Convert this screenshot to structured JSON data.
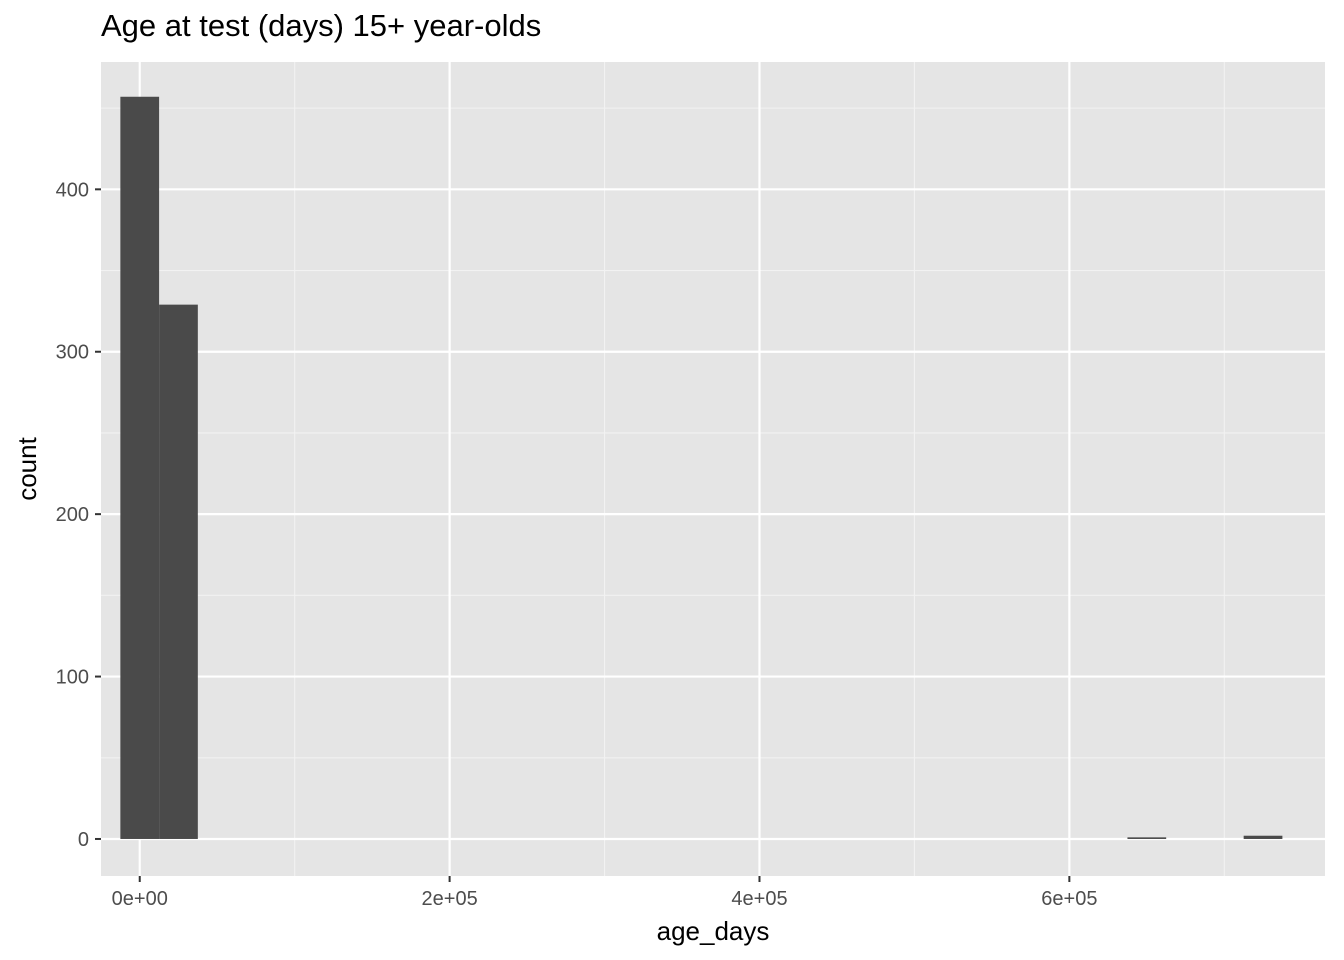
{
  "chart_data": {
    "type": "bar",
    "title": "Age at test (days) 15+ year-olds",
    "xlabel": "age_days",
    "ylabel": "count",
    "xlim": [
      -25000,
      765000
    ],
    "ylim": [
      -22.8,
      478.4
    ],
    "x_ticks": [
      {
        "value": 0,
        "label": "0e+00"
      },
      {
        "value": 200000,
        "label": "2e+05"
      },
      {
        "value": 400000,
        "label": "4e+05"
      },
      {
        "value": 600000,
        "label": "6e+05"
      }
    ],
    "y_ticks": [
      {
        "value": 0,
        "label": "0"
      },
      {
        "value": 100,
        "label": "100"
      },
      {
        "value": 200,
        "label": "200"
      },
      {
        "value": 300,
        "label": "300"
      },
      {
        "value": 400,
        "label": "400"
      }
    ],
    "bin_width": 25000,
    "bins": [
      {
        "x_start": -12500,
        "x_end": 12500,
        "count": 457
      },
      {
        "x_start": 12500,
        "x_end": 37500,
        "count": 329
      },
      {
        "x_start": 637500,
        "x_end": 662500,
        "count": 1
      },
      {
        "x_start": 712500,
        "x_end": 737500,
        "count": 2
      }
    ],
    "grid": true,
    "colors": {
      "panel_background": "#e5e5e5",
      "grid_major": "#ffffff",
      "grid_minor": "#f2f2f2",
      "bar_fill": "#4a4a4a",
      "tick_label": "#4d4d4d",
      "axis_title": "#000000"
    }
  }
}
